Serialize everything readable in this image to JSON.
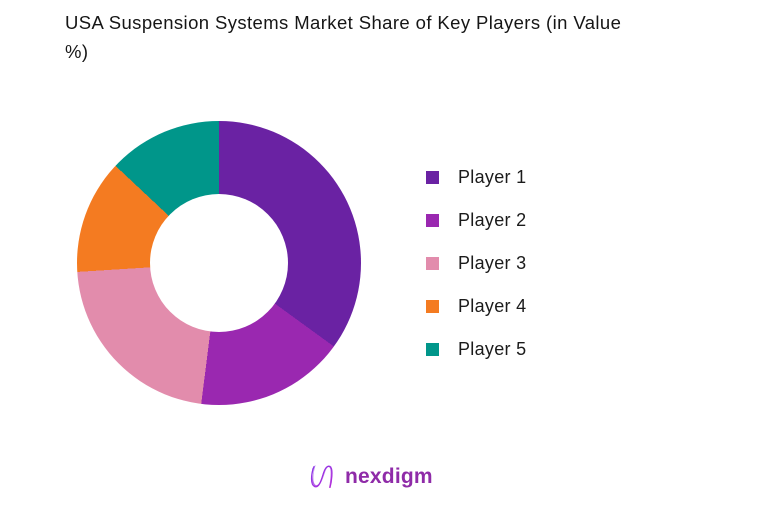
{
  "title": "USA Suspension Systems Market Share of Key Players (in Value\n%)",
  "chart_data": {
    "type": "pie",
    "subtype": "donut",
    "title": "USA Suspension Systems Market Share of Key Players (in Value %)",
    "unit": "%",
    "categories": [
      "Player 1",
      "Player 2",
      "Player 3",
      "Player 4",
      "Player 5"
    ],
    "values": [
      35,
      17,
      22,
      13,
      13
    ],
    "colors": [
      "#6A22A3",
      "#9A28B0",
      "#E28CAC",
      "#F47B21",
      "#00968A"
    ],
    "start_angle_deg": 0,
    "direction": "clockwise",
    "inner_radius_ratio": 0.49,
    "legend_position": "right",
    "data_labels": false
  },
  "footer": {
    "brand": "nexdigm",
    "brand_color": "#8F2BA8",
    "logo_icon": "nexdigm-wave-n-mark",
    "logo_gradient": [
      "#7C3AED",
      "#C026D3"
    ]
  }
}
